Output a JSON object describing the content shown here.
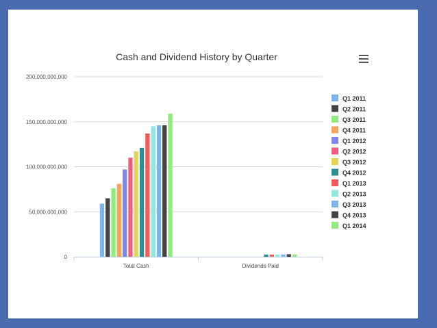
{
  "chart_data": {
    "type": "bar",
    "title": "Cash and Dividend History by Quarter",
    "xlabel": "",
    "ylabel": "",
    "categories": [
      "Total Cash",
      "Dividends Paid"
    ],
    "ylim": [
      0,
      200000000000
    ],
    "yticks": [
      0,
      50000000000,
      100000000000,
      150000000000,
      200000000000
    ],
    "ytick_labels": [
      "0",
      "50,000,000,000",
      "100,000,000,000",
      "150,000,000,000",
      "200,000,000,000"
    ],
    "grid": true,
    "legend_position": "right",
    "series": [
      {
        "name": "Q1 2011",
        "color": "#7cb5ec",
        "values": [
          59000000000,
          0
        ]
      },
      {
        "name": "Q2 2011",
        "color": "#434348",
        "values": [
          65000000000,
          0
        ]
      },
      {
        "name": "Q3 2011",
        "color": "#90ed7d",
        "values": [
          76000000000,
          0
        ]
      },
      {
        "name": "Q4 2011",
        "color": "#f7a35c",
        "values": [
          81000000000,
          0
        ]
      },
      {
        "name": "Q1 2012",
        "color": "#8085e9",
        "values": [
          97000000000,
          0
        ]
      },
      {
        "name": "Q2 2012",
        "color": "#f15c80",
        "values": [
          110000000000,
          0
        ]
      },
      {
        "name": "Q3 2012",
        "color": "#e4d354",
        "values": [
          117000000000,
          0
        ]
      },
      {
        "name": "Q4 2012",
        "color": "#2b908f",
        "values": [
          121000000000,
          2500000000
        ]
      },
      {
        "name": "Q1 2013",
        "color": "#f45b5b",
        "values": [
          137000000000,
          2500000000
        ]
      },
      {
        "name": "Q2 2013",
        "color": "#91e8e1",
        "values": [
          145000000000,
          2500000000
        ]
      },
      {
        "name": "Q3 2013",
        "color": "#7cb5ec",
        "values": [
          146000000000,
          2500000000
        ]
      },
      {
        "name": "Q4 2013",
        "color": "#434348",
        "values": [
          146000000000,
          2800000000
        ]
      },
      {
        "name": "Q1 2014",
        "color": "#90ed7d",
        "values": [
          159000000000,
          2600000000
        ]
      }
    ]
  },
  "menu": {
    "icon": "hamburger-menu-icon"
  }
}
